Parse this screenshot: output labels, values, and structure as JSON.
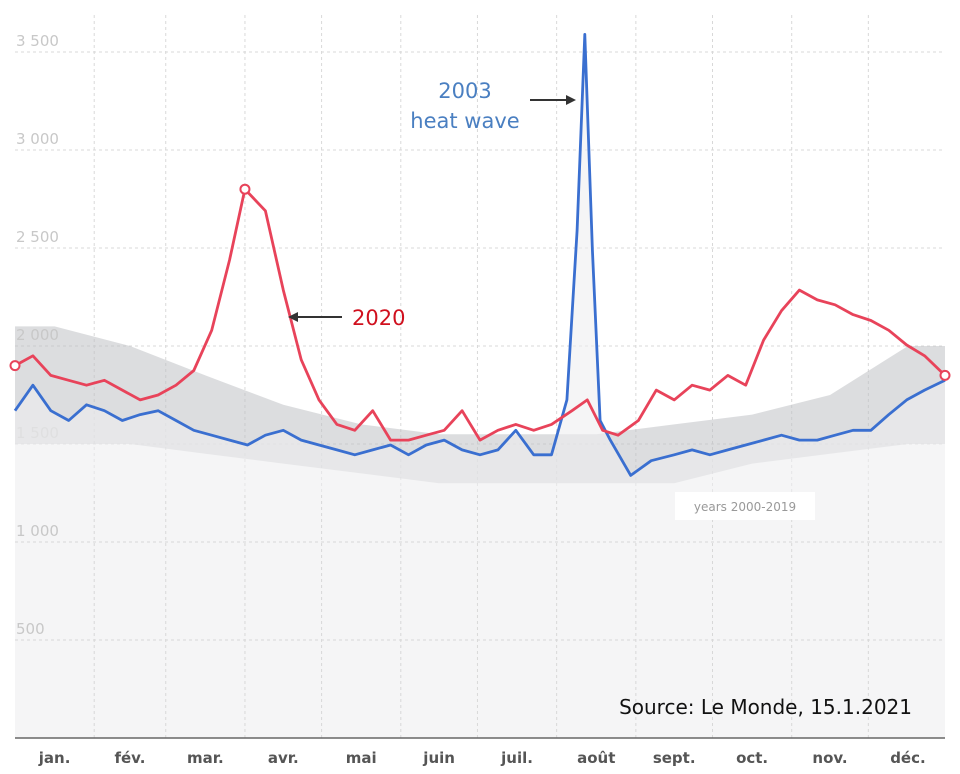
{
  "chart_data": {
    "type": "line",
    "title": "",
    "xlabel": "",
    "ylabel": "",
    "ylim": [
      0,
      3700
    ],
    "x_unit": "day of year",
    "yticks": [
      500,
      1000,
      1500,
      2000,
      2500,
      3000,
      3500
    ],
    "ytick_labels": [
      "500",
      "1 000",
      "1 500",
      "2 000",
      "2 500",
      "3 000",
      "3 500"
    ],
    "months": [
      "jan.",
      "fév.",
      "mar.",
      "avr.",
      "mai",
      "juin",
      "juil.",
      "août",
      "sept.",
      "oct.",
      "nov.",
      "déc."
    ],
    "grid": true,
    "series": [
      {
        "name": "2020",
        "color": "#e8435a",
        "points": [
          [
            1,
            1900
          ],
          [
            8,
            1950
          ],
          [
            15,
            1850
          ],
          [
            22,
            1825
          ],
          [
            29,
            1800
          ],
          [
            36,
            1825
          ],
          [
            43,
            1775
          ],
          [
            50,
            1725
          ],
          [
            57,
            1750
          ],
          [
            64,
            1800
          ],
          [
            71,
            1875
          ],
          [
            78,
            2080
          ],
          [
            85,
            2440
          ],
          [
            91,
            2800
          ],
          [
            99,
            2690
          ],
          [
            106,
            2285
          ],
          [
            113,
            1930
          ],
          [
            120,
            1725
          ],
          [
            127,
            1600
          ],
          [
            134,
            1570
          ],
          [
            141,
            1670
          ],
          [
            148,
            1520
          ],
          [
            155,
            1520
          ],
          [
            162,
            1545
          ],
          [
            169,
            1570
          ],
          [
            176,
            1670
          ],
          [
            183,
            1520
          ],
          [
            190,
            1570
          ],
          [
            197,
            1600
          ],
          [
            204,
            1570
          ],
          [
            211,
            1600
          ],
          [
            219,
            1670
          ],
          [
            225,
            1725
          ],
          [
            231,
            1570
          ],
          [
            237,
            1545
          ],
          [
            245,
            1620
          ],
          [
            252,
            1775
          ],
          [
            259,
            1725
          ],
          [
            266,
            1800
          ],
          [
            273,
            1775
          ],
          [
            280,
            1850
          ],
          [
            287,
            1800
          ],
          [
            294,
            2030
          ],
          [
            301,
            2180
          ],
          [
            308,
            2285
          ],
          [
            315,
            2235
          ],
          [
            322,
            2210
          ],
          [
            329,
            2160
          ],
          [
            336,
            2130
          ],
          [
            343,
            2080
          ],
          [
            350,
            2005
          ],
          [
            357,
            1950
          ],
          [
            365,
            1850
          ]
        ]
      },
      {
        "name": "2003",
        "color": "#3a6fd0",
        "points": [
          [
            1,
            1670
          ],
          [
            8,
            1800
          ],
          [
            15,
            1670
          ],
          [
            22,
            1620
          ],
          [
            29,
            1700
          ],
          [
            36,
            1670
          ],
          [
            43,
            1620
          ],
          [
            50,
            1650
          ],
          [
            57,
            1670
          ],
          [
            64,
            1620
          ],
          [
            71,
            1570
          ],
          [
            78,
            1545
          ],
          [
            85,
            1520
          ],
          [
            92,
            1495
          ],
          [
            99,
            1545
          ],
          [
            106,
            1570
          ],
          [
            113,
            1520
          ],
          [
            120,
            1495
          ],
          [
            127,
            1470
          ],
          [
            134,
            1445
          ],
          [
            141,
            1470
          ],
          [
            148,
            1495
          ],
          [
            155,
            1445
          ],
          [
            162,
            1495
          ],
          [
            169,
            1520
          ],
          [
            176,
            1470
          ],
          [
            183,
            1445
          ],
          [
            190,
            1470
          ],
          [
            197,
            1570
          ],
          [
            204,
            1445
          ],
          [
            211,
            1445
          ],
          [
            217,
            1725
          ],
          [
            221,
            2590
          ],
          [
            224,
            3590
          ],
          [
            227,
            2490
          ],
          [
            230,
            1620
          ],
          [
            234,
            1520
          ],
          [
            242,
            1340
          ],
          [
            250,
            1415
          ],
          [
            259,
            1445
          ],
          [
            266,
            1470
          ],
          [
            273,
            1445
          ],
          [
            280,
            1470
          ],
          [
            287,
            1495
          ],
          [
            294,
            1520
          ],
          [
            301,
            1545
          ],
          [
            308,
            1520
          ],
          [
            315,
            1520
          ],
          [
            322,
            1545
          ],
          [
            329,
            1570
          ],
          [
            336,
            1570
          ],
          [
            343,
            1650
          ],
          [
            350,
            1725
          ],
          [
            357,
            1775
          ],
          [
            365,
            1825
          ]
        ]
      },
      {
        "name": "years 2000-2019",
        "color": "#9a9a9a",
        "band_low": [
          1500,
          1500,
          1450,
          1400,
          1350,
          1300,
          1300,
          1300,
          1300,
          1400,
          1450,
          1500
        ],
        "band_high": [
          2100,
          2000,
          1850,
          1700,
          1600,
          1550,
          1550,
          1550,
          1600,
          1650,
          1750,
          2000
        ]
      }
    ],
    "annotations": {
      "heatwave_line1": "2003",
      "heatwave_line2": "heat wave",
      "covid": "2020",
      "band": "years 2000-2019",
      "source": "Source: Le Monde, 15.1.2021"
    }
  }
}
